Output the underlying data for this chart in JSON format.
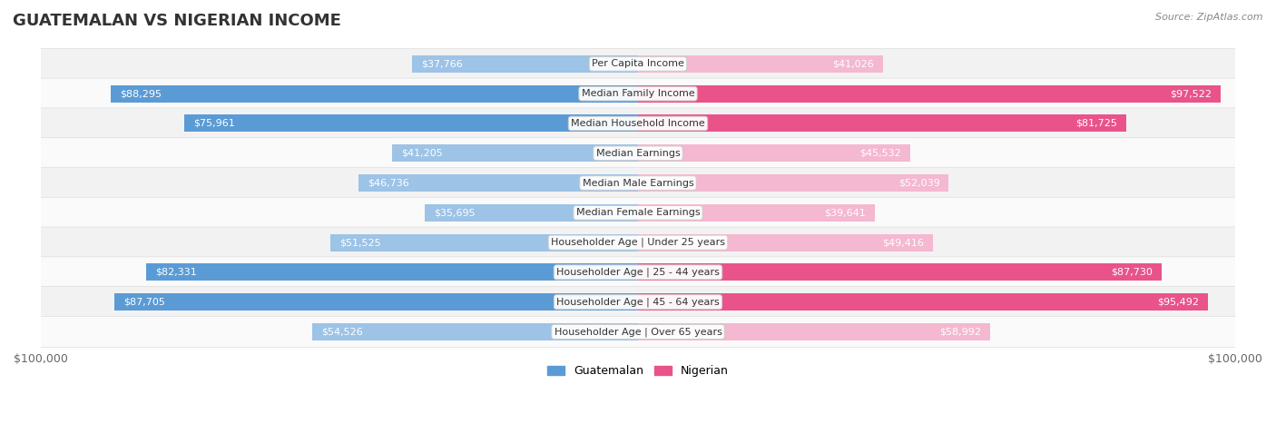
{
  "title": "GUATEMALAN VS NIGERIAN INCOME",
  "source": "Source: ZipAtlas.com",
  "categories": [
    "Per Capita Income",
    "Median Family Income",
    "Median Household Income",
    "Median Earnings",
    "Median Male Earnings",
    "Median Female Earnings",
    "Householder Age | Under 25 years",
    "Householder Age | 25 - 44 years",
    "Householder Age | 45 - 64 years",
    "Householder Age | Over 65 years"
  ],
  "guatemalan": [
    37766,
    88295,
    75961,
    41205,
    46736,
    35695,
    51525,
    82331,
    87705,
    54526
  ],
  "nigerian": [
    41026,
    97522,
    81725,
    45532,
    52039,
    39641,
    49416,
    87730,
    95492,
    58992
  ],
  "max_val": 100000,
  "guatemalan_color_dark": "#5b9bd5",
  "guatemalan_color_light": "#9dc3e6",
  "nigerian_color_dark": "#e9538a",
  "nigerian_color_light": "#f4b8d0",
  "bar_height": 0.58,
  "row_bg_even": "#f2f2f2",
  "row_bg_odd": "#fafafa",
  "legend_guatemalan": "Guatemalan",
  "legend_nigerian": "Nigerian",
  "title_fontsize": 13,
  "label_fontsize": 8,
  "category_fontsize": 8,
  "inside_label_threshold": 20000,
  "large_threshold": 60000
}
